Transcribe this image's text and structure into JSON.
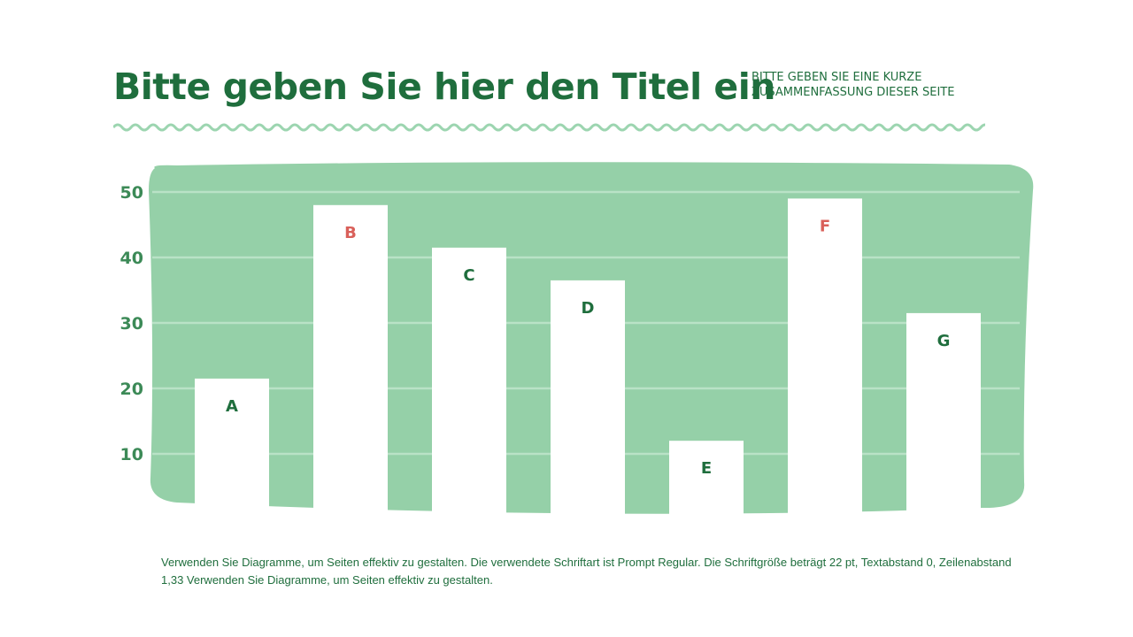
{
  "header": {
    "title": "Bitte geben Sie hier den Titel ein",
    "summary": "BITTE GEBEN SIE EINE KURZE ZUSAMMENFASSUNG DIESER SEITE"
  },
  "footer": {
    "text": "Verwenden Sie Diagramme, um Seiten effektiv zu gestalten. Die verwendete Schriftart ist Prompt Regular. Die Schriftgröße beträgt 22 pt, Textabstand 0, Zeilenabstand 1,33 Verwenden Sie Diagramme, um Seiten effektiv zu gestalten."
  },
  "colors": {
    "background_blob": "#95d0a8",
    "bars": "#ffffff",
    "label_default": "#1f6e3d",
    "label_highlight": "#d9605a",
    "axis_ticks": "#3c8a57"
  },
  "chart_data": {
    "type": "bar",
    "categories": [
      "A",
      "B",
      "C",
      "D",
      "E",
      "F",
      "G"
    ],
    "values": [
      21.5,
      48,
      41.5,
      36.5,
      12,
      49,
      31.5
    ],
    "highlighted": [
      "B",
      "F"
    ],
    "yticks": [
      10,
      20,
      30,
      40,
      50
    ],
    "ylim": [
      0,
      50
    ],
    "grid": true,
    "title": "",
    "xlabel": "",
    "ylabel": ""
  }
}
